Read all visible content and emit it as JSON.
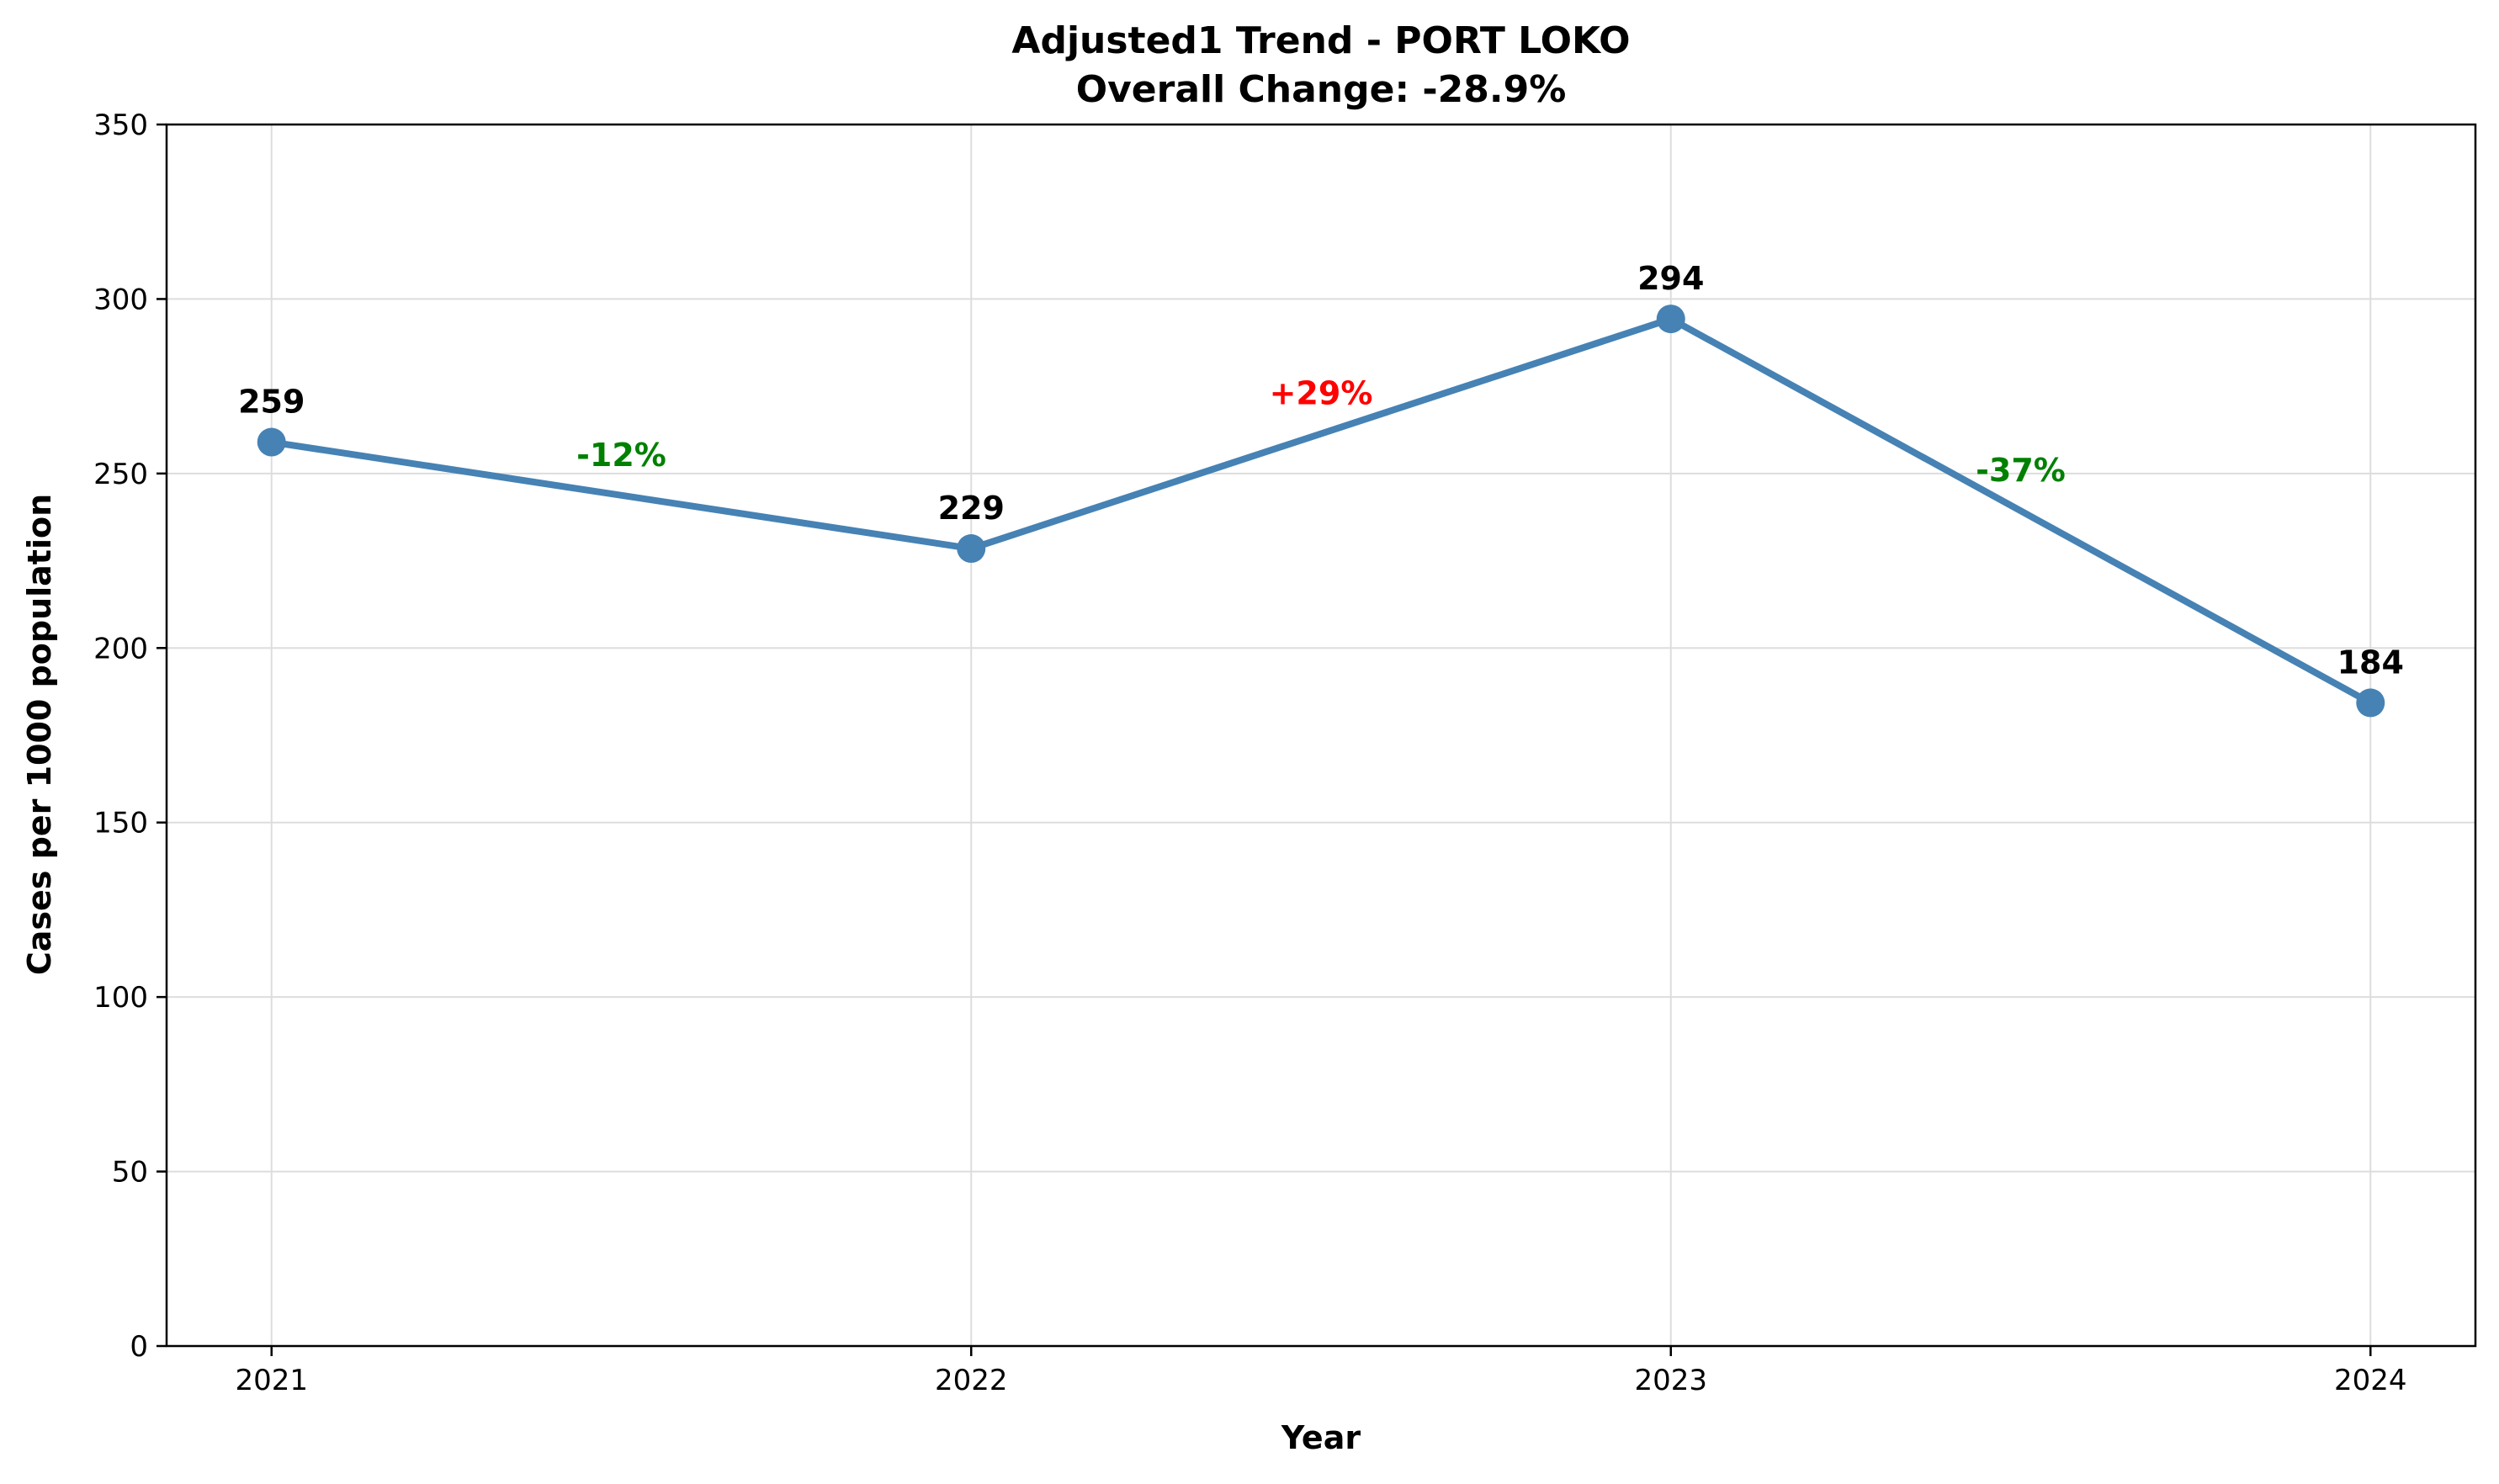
{
  "chart_data": {
    "type": "line",
    "title": "Adjusted1 Trend - PORT LOKO",
    "subtitle": "Overall Change: -28.9%",
    "xlabel": "Year",
    "ylabel": "Cases per 1000 population",
    "x": [
      2021,
      2022,
      2023,
      2024
    ],
    "x_tick_labels": [
      "2021",
      "2022",
      "2023",
      "2024"
    ],
    "series": [
      {
        "values": [
          259,
          228.5,
          294.3,
          184.3
        ],
        "point_labels": [
          "259",
          "229",
          "294",
          "184"
        ],
        "color": "#4682B4"
      }
    ],
    "segment_changes": [
      {
        "label": "-12%",
        "direction": "decrease",
        "color": "#008000"
      },
      {
        "label": "+29%",
        "direction": "increase",
        "color": "#FF0000"
      },
      {
        "label": "-37%",
        "direction": "decrease",
        "color": "#008000"
      }
    ],
    "ylim": [
      0,
      350
    ],
    "y_ticks": [
      0,
      50,
      100,
      150,
      200,
      250,
      300,
      350
    ],
    "grid": true,
    "legend": "none"
  }
}
